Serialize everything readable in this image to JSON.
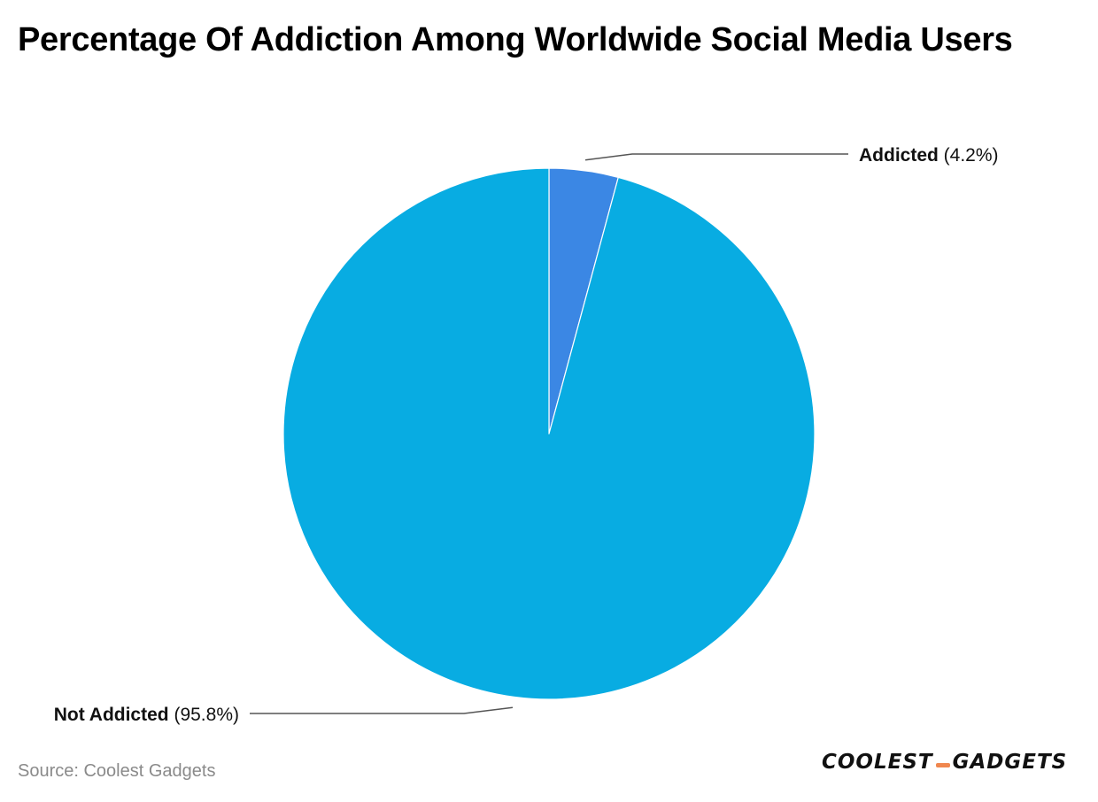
{
  "title": "Percentage Of Addiction Among Worldwide Social Media Users",
  "source": "Source: Coolest Gadgets",
  "brand": {
    "left": "COOLEST",
    "right": "GADGETS",
    "accent_color": "#f0874f"
  },
  "chart_data": {
    "type": "pie",
    "title": "Percentage Of Addiction Among Worldwide Social Media Users",
    "start_angle": "12 o'clock, clockwise",
    "slices": [
      {
        "label": "Addicted",
        "value": 4.2,
        "display": "(4.2%)",
        "color": "#3b87e4"
      },
      {
        "label": "Not Addicted",
        "value": 95.8,
        "display": "(95.8%)",
        "color": "#08ace2"
      }
    ]
  }
}
